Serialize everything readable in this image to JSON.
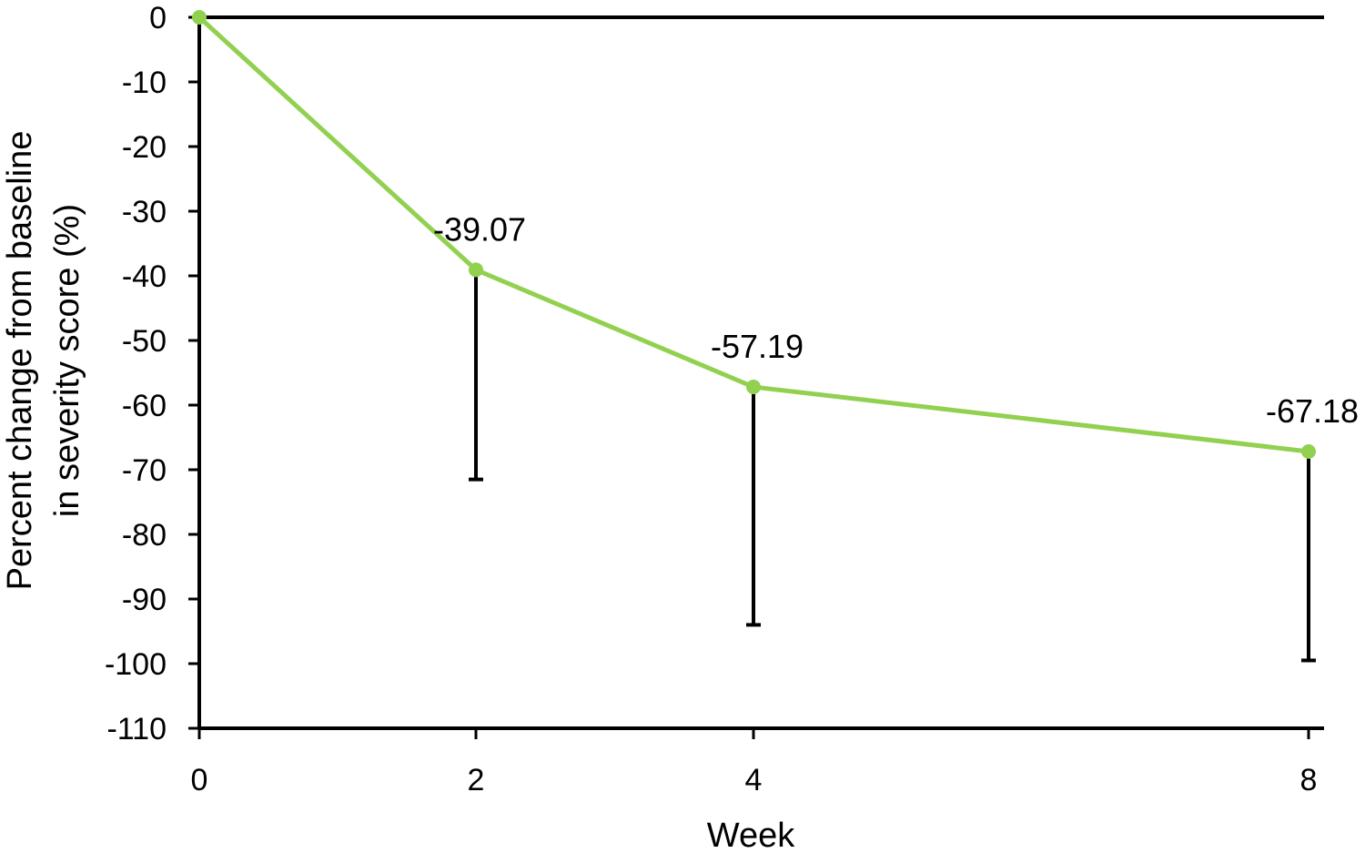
{
  "chart_data": {
    "type": "line",
    "x_positions": [
      "0",
      "2",
      "4",
      "8"
    ],
    "x_tick_labels": [
      "0",
      "2",
      "4",
      "8"
    ],
    "y_ticks": [
      0,
      -10,
      -20,
      -30,
      -40,
      -50,
      -60,
      -70,
      -80,
      -90,
      -100,
      -110
    ],
    "ylim": [
      -110,
      0
    ],
    "xlabel": "Week",
    "ylabel_lines": [
      "Percent change from baseline",
      "in severity score (%)"
    ],
    "series": [
      {
        "x": [
          "0",
          "2",
          "4",
          "8"
        ],
        "values": [
          0,
          -39.07,
          -57.19,
          -67.18
        ],
        "data_labels": [
          "",
          "-39.07",
          "-57.19",
          "-67.18"
        ],
        "error_lower": [
          null,
          -71.5,
          -94,
          -99.5
        ],
        "color": "#92d050"
      }
    ],
    "grid": false,
    "legend": "none"
  }
}
